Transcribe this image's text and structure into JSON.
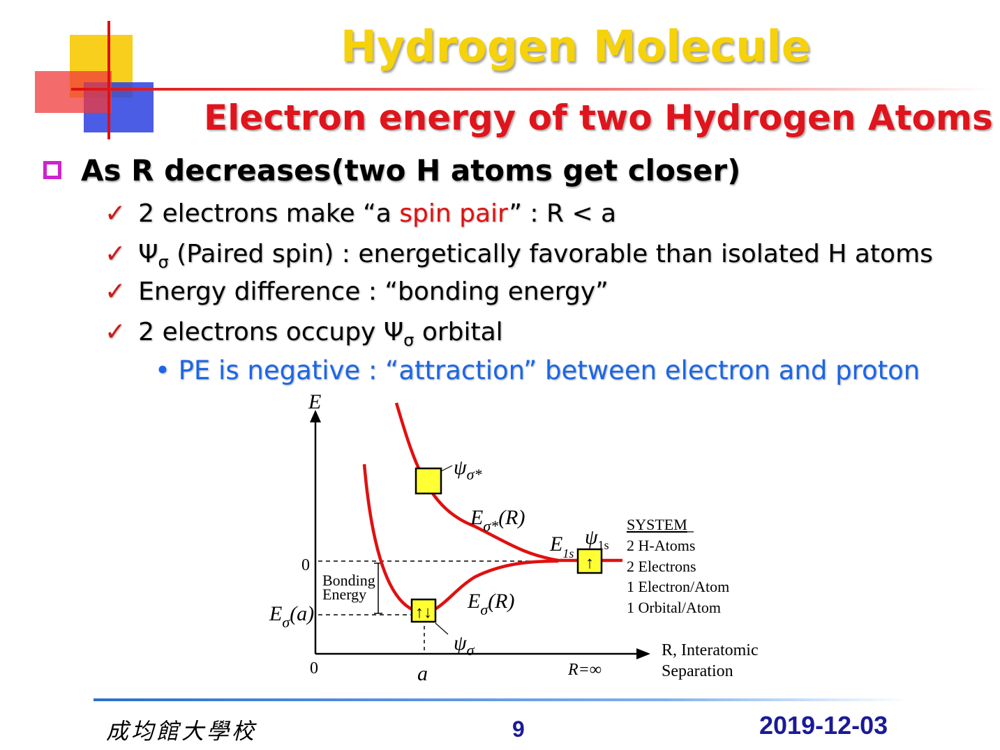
{
  "slide": {
    "title": "Hydrogen Molecule",
    "subtitle": "Electron energy of two Hydrogen Atoms",
    "main_bullet": "As R decreases(two H atoms get closer)",
    "points": {
      "p1_pre": "2 electrons make “a ",
      "p1_red": "spin pair",
      "p1_post": "” : R < a",
      "p2_psi": "Ψ",
      "p2_sub": "σ",
      "p2_text": " (Paired spin) : energetically favorable than isolated H atoms",
      "p3_text": "Energy difference : “bonding energy”",
      "p4_pre": "2 electrons occupy ",
      "p4_psi": "Ψ",
      "p4_sub": "σ",
      "p4_post": " orbital",
      "p5_text": "PE is negative : “attraction” between electron and proton"
    },
    "check_mark": "✓",
    "bullet_dot": "•"
  },
  "diagram": {
    "y_axis_label": "E",
    "zero_label_y": "0",
    "zero_label_x": "0",
    "a_label": "a",
    "r_inf_label": "R=∞",
    "x_axis_label_line1": "R, Interatomic",
    "x_axis_label_line2": "Separation",
    "bonding_energy_line1": "Bonding",
    "bonding_energy_line2": "Energy",
    "e_sigma_a": "E",
    "e_sigma_a_sub": "σ",
    "e_sigma_a_tail": "(a)",
    "psi_sigma_star": "ψ",
    "psi_sigma_star_sub": "σ*",
    "e_sigma_star_r": "E",
    "e_sigma_star_r_sub": "σ*",
    "e_sigma_star_r_tail": "(R)",
    "e_sigma_r": "E",
    "e_sigma_r_sub": "σ",
    "e_sigma_r_tail": "(R)",
    "psi_sigma": "ψ",
    "psi_sigma_sub": "σ",
    "e_1s": "E",
    "e_1s_sub": "1s",
    "psi_1s": "ψ",
    "psi_1s_sub": "1s",
    "system_title": "SYSTEM",
    "system_lines": [
      "2 H-Atoms",
      "2 Electrons",
      "1 Electron/Atom",
      "1 Orbital/Atom"
    ],
    "paired_arrows": "↑↓",
    "single_arrow": "↑",
    "colors": {
      "curve": "#e01010",
      "box": "#ffff33"
    }
  },
  "footer": {
    "school": "成均館大學校",
    "page": "9",
    "date": "2019-12-03"
  }
}
